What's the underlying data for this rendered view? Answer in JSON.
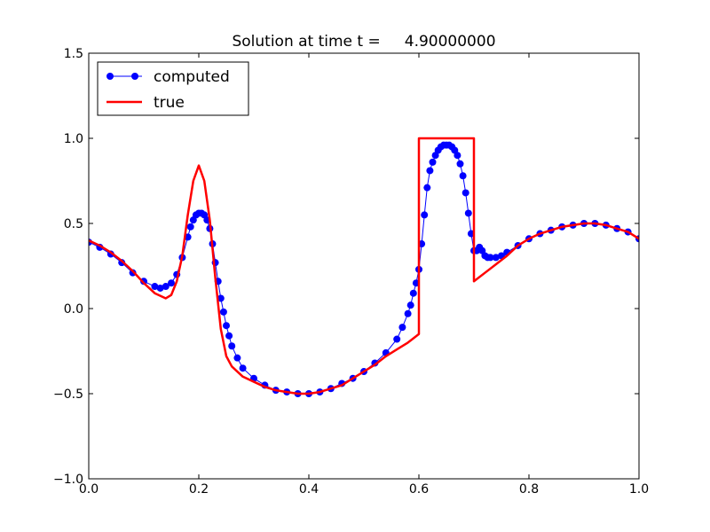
{
  "chart_data": {
    "type": "line",
    "title": "Solution at time t =     4.90000000",
    "xlabel": "",
    "ylabel": "",
    "xlim": [
      0.0,
      1.0
    ],
    "ylim": [
      -1.0,
      1.5
    ],
    "x_ticks": [
      "0.0",
      "0.2",
      "0.4",
      "0.6",
      "0.8",
      "1.0"
    ],
    "y_ticks": [
      "−1.0",
      "−0.5",
      "0.0",
      "0.5",
      "1.0",
      "1.5"
    ],
    "legend_position": "top-left",
    "grid": false,
    "series": [
      {
        "name": "computed",
        "style": "line-with-markers",
        "color": "#0000ff",
        "x": [
          0.0,
          0.02,
          0.04,
          0.06,
          0.08,
          0.1,
          0.12,
          0.13,
          0.14,
          0.15,
          0.16,
          0.17,
          0.18,
          0.185,
          0.19,
          0.195,
          0.2,
          0.205,
          0.21,
          0.215,
          0.22,
          0.225,
          0.23,
          0.235,
          0.24,
          0.245,
          0.25,
          0.255,
          0.26,
          0.27,
          0.28,
          0.3,
          0.32,
          0.34,
          0.36,
          0.38,
          0.4,
          0.42,
          0.44,
          0.46,
          0.48,
          0.5,
          0.52,
          0.54,
          0.56,
          0.57,
          0.58,
          0.585,
          0.59,
          0.595,
          0.6,
          0.605,
          0.61,
          0.615,
          0.62,
          0.625,
          0.63,
          0.635,
          0.64,
          0.645,
          0.65,
          0.655,
          0.66,
          0.665,
          0.67,
          0.675,
          0.68,
          0.685,
          0.69,
          0.695,
          0.7,
          0.705,
          0.71,
          0.715,
          0.72,
          0.725,
          0.73,
          0.74,
          0.75,
          0.76,
          0.78,
          0.8,
          0.82,
          0.84,
          0.86,
          0.88,
          0.9,
          0.92,
          0.94,
          0.96,
          0.98,
          1.0
        ],
        "y": [
          0.39,
          0.36,
          0.32,
          0.27,
          0.21,
          0.16,
          0.13,
          0.12,
          0.13,
          0.15,
          0.2,
          0.3,
          0.42,
          0.48,
          0.52,
          0.55,
          0.56,
          0.56,
          0.55,
          0.52,
          0.47,
          0.38,
          0.27,
          0.16,
          0.06,
          -0.02,
          -0.1,
          -0.16,
          -0.22,
          -0.29,
          -0.35,
          -0.41,
          -0.45,
          -0.48,
          -0.49,
          -0.5,
          -0.5,
          -0.49,
          -0.47,
          -0.44,
          -0.41,
          -0.37,
          -0.32,
          -0.26,
          -0.18,
          -0.11,
          -0.03,
          0.02,
          0.09,
          0.15,
          0.23,
          0.38,
          0.55,
          0.71,
          0.81,
          0.86,
          0.9,
          0.93,
          0.95,
          0.96,
          0.96,
          0.96,
          0.95,
          0.93,
          0.9,
          0.85,
          0.78,
          0.68,
          0.56,
          0.44,
          0.34,
          0.34,
          0.36,
          0.34,
          0.31,
          0.3,
          0.3,
          0.3,
          0.31,
          0.33,
          0.37,
          0.41,
          0.44,
          0.46,
          0.48,
          0.49,
          0.5,
          0.5,
          0.49,
          0.47,
          0.45,
          0.41
        ]
      },
      {
        "name": "true",
        "style": "line",
        "color": "#ff0000",
        "x": [
          0.0,
          0.02,
          0.04,
          0.06,
          0.08,
          0.1,
          0.12,
          0.14,
          0.15,
          0.16,
          0.17,
          0.18,
          0.19,
          0.2,
          0.21,
          0.22,
          0.23,
          0.24,
          0.25,
          0.26,
          0.28,
          0.3,
          0.32,
          0.34,
          0.36,
          0.38,
          0.4,
          0.42,
          0.44,
          0.46,
          0.48,
          0.5,
          0.52,
          0.54,
          0.56,
          0.58,
          0.6,
          0.6,
          0.7,
          0.7,
          0.72,
          0.74,
          0.76,
          0.78,
          0.8,
          0.82,
          0.84,
          0.86,
          0.88,
          0.9,
          0.92,
          0.94,
          0.96,
          0.98,
          1.0
        ],
        "y": [
          0.4,
          0.37,
          0.33,
          0.28,
          0.22,
          0.15,
          0.09,
          0.06,
          0.08,
          0.16,
          0.31,
          0.55,
          0.75,
          0.84,
          0.75,
          0.52,
          0.18,
          -0.12,
          -0.28,
          -0.34,
          -0.4,
          -0.43,
          -0.46,
          -0.48,
          -0.49,
          -0.5,
          -0.5,
          -0.49,
          -0.47,
          -0.45,
          -0.41,
          -0.37,
          -0.33,
          -0.28,
          -0.24,
          -0.2,
          -0.15,
          1.0,
          1.0,
          0.16,
          0.21,
          0.26,
          0.31,
          0.37,
          0.41,
          0.44,
          0.46,
          0.48,
          0.49,
          0.5,
          0.5,
          0.49,
          0.47,
          0.45,
          0.41
        ]
      }
    ]
  }
}
